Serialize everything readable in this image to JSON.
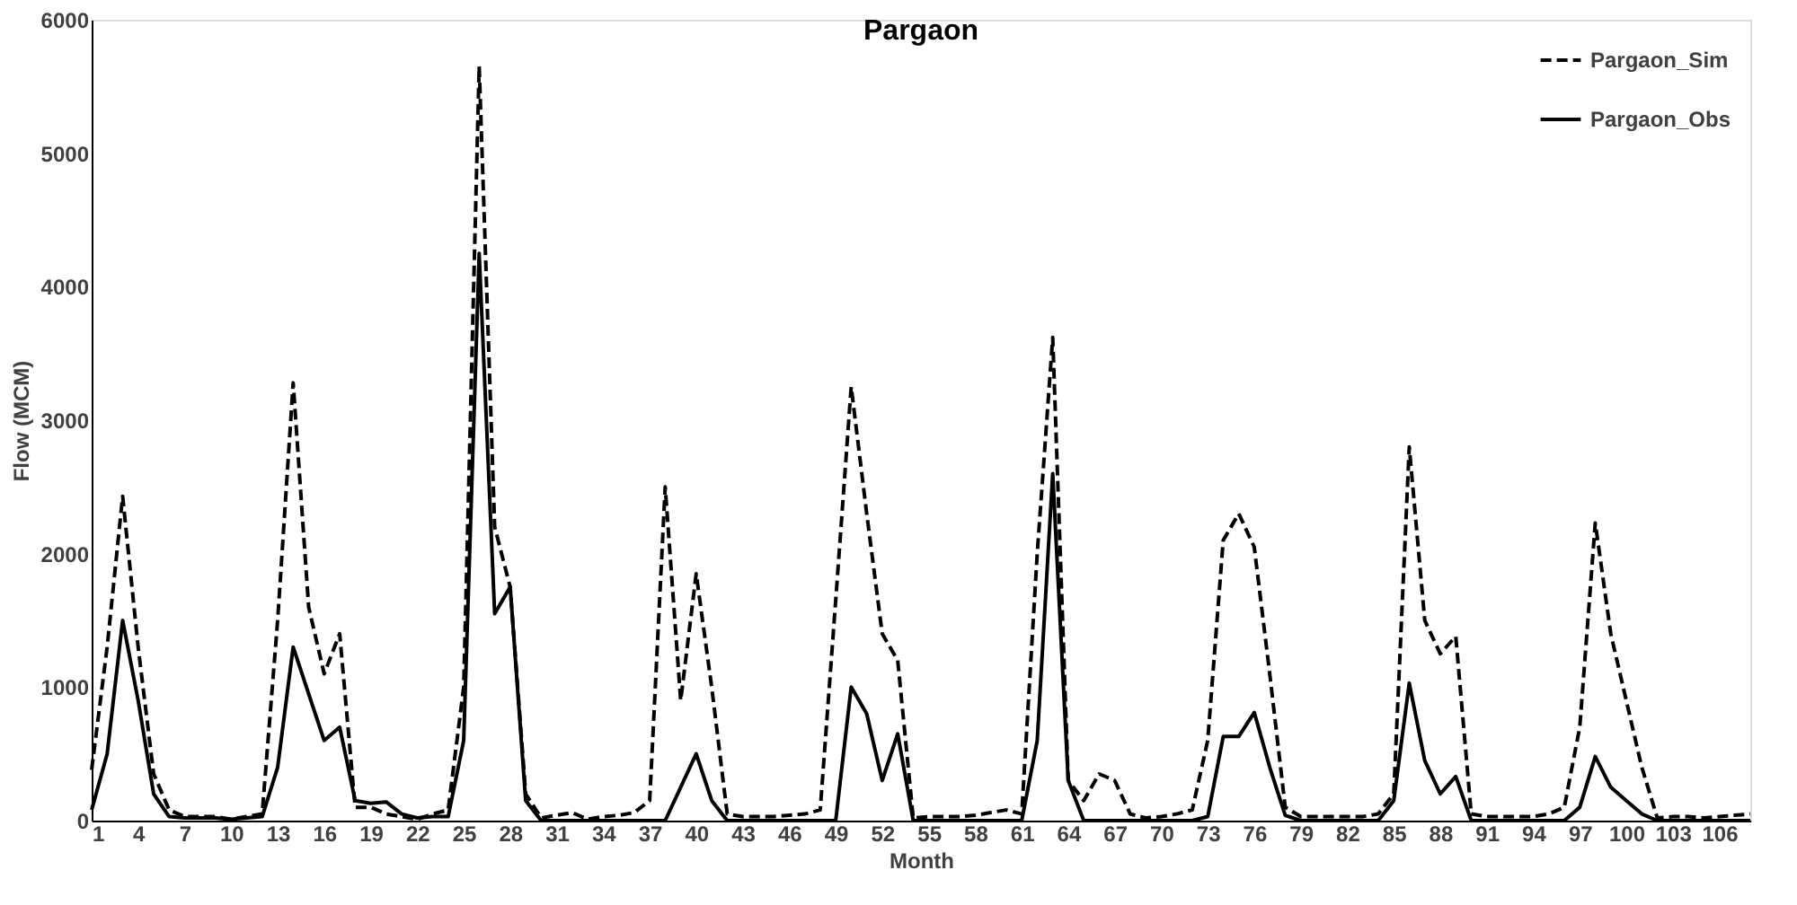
{
  "chart_data": {
    "type": "line",
    "title": "Pargaon",
    "xlabel": "Month",
    "ylabel": "Flow (MCM)",
    "categories": [
      "1",
      null,
      null,
      "4",
      null,
      null,
      "7",
      null,
      null,
      "10",
      null,
      null,
      "13",
      null,
      null,
      "16",
      null,
      null,
      "19",
      null,
      null,
      "22",
      null,
      null,
      "25",
      null,
      null,
      "28",
      null,
      null,
      "31",
      null,
      null,
      "34",
      null,
      null,
      "37",
      null,
      null,
      "40",
      null,
      null,
      "43",
      null,
      null,
      "46",
      null,
      null,
      "49",
      null,
      null,
      "52",
      null,
      null,
      "55",
      null,
      null,
      "58",
      null,
      null,
      "61",
      null,
      null,
      "64",
      null,
      null,
      "67",
      null,
      null,
      "70",
      null,
      null,
      "73",
      null,
      null,
      "76",
      null,
      null,
      "79",
      null,
      null,
      "82",
      null,
      null,
      "85",
      null,
      null,
      "88",
      null,
      null,
      "91",
      null,
      null,
      "94",
      null,
      null,
      "97",
      null,
      null,
      "100",
      null,
      null,
      "103",
      null,
      null,
      "106",
      null,
      null
    ],
    "series": [
      {
        "name": "Pargaon_Sim",
        "color": "#000000",
        "line_style": "dashed",
        "values": [
          380,
          1300,
          2430,
          1300,
          350,
          80,
          30,
          30,
          30,
          10,
          30,
          50,
          1500,
          3280,
          1600,
          1100,
          1400,
          100,
          100,
          50,
          30,
          10,
          50,
          80,
          1000,
          5650,
          2200,
          1750,
          200,
          20,
          40,
          60,
          10,
          30,
          40,
          60,
          150,
          2500,
          900,
          1850,
          1000,
          50,
          30,
          30,
          30,
          40,
          50,
          80,
          1650,
          3250,
          2300,
          1400,
          1200,
          20,
          30,
          30,
          30,
          40,
          60,
          80,
          50,
          2000,
          3620,
          300,
          150,
          350,
          300,
          50,
          20,
          30,
          50,
          80,
          600,
          2100,
          2300,
          2050,
          1100,
          100,
          30,
          30,
          30,
          30,
          30,
          50,
          200,
          2800,
          1500,
          1250,
          1380,
          50,
          30,
          30,
          30,
          30,
          50,
          100,
          700,
          2230,
          1400,
          900,
          400,
          20,
          30,
          30,
          20,
          30,
          40,
          50
        ]
      },
      {
        "name": "Pargaon_Obs",
        "color": "#000000",
        "line_style": "solid",
        "values": [
          80,
          500,
          1500,
          900,
          200,
          30,
          20,
          20,
          20,
          10,
          20,
          30,
          400,
          1300,
          950,
          600,
          700,
          150,
          130,
          140,
          50,
          20,
          30,
          30,
          600,
          4250,
          1550,
          1750,
          150,
          0,
          0,
          0,
          0,
          0,
          0,
          0,
          0,
          0,
          250,
          500,
          150,
          0,
          0,
          0,
          0,
          0,
          0,
          0,
          0,
          1000,
          800,
          300,
          650,
          0,
          0,
          0,
          0,
          0,
          0,
          0,
          0,
          600,
          2600,
          300,
          0,
          0,
          0,
          0,
          0,
          0,
          0,
          0,
          30,
          630,
          630,
          810,
          400,
          40,
          0,
          0,
          0,
          0,
          0,
          0,
          150,
          1030,
          450,
          200,
          330,
          0,
          0,
          0,
          0,
          0,
          0,
          0,
          100,
          480,
          250,
          150,
          50,
          0,
          0,
          0,
          0,
          0,
          0,
          0
        ]
      }
    ],
    "ylim": [
      0,
      6000
    ],
    "yticks": [
      0,
      1000,
      2000,
      3000,
      4000,
      5000,
      6000
    ],
    "grid": false,
    "legend": "top right"
  }
}
